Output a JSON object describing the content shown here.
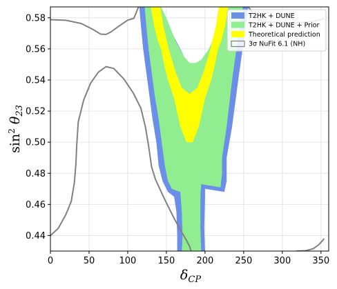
{
  "chart_data": {
    "type": "area",
    "xlabel": "δ_CP",
    "ylabel": "sin² θ23",
    "xlim": [
      0,
      360
    ],
    "ylim": [
      0.43,
      0.587
    ],
    "x_ticks": [
      0,
      50,
      100,
      150,
      200,
      250,
      300,
      350
    ],
    "y_ticks": [
      0.44,
      0.46,
      0.48,
      0.5,
      0.52,
      0.54,
      0.56,
      0.58
    ],
    "grid": true,
    "legend_position": "top-right",
    "colors": {
      "t2hk_dune": "#6b8fe8",
      "prior": "#90ee90",
      "theory": "#ffff00",
      "nufit": "#808080"
    },
    "legend": [
      {
        "key": "t2hk_dune",
        "label": "T2HK + DUNE",
        "style": "fill"
      },
      {
        "key": "prior",
        "label": "T2HK + DUNE + Prior",
        "style": "fill"
      },
      {
        "key": "theory",
        "label": "Theoretical prediction",
        "style": "fill"
      },
      {
        "key": "nufit",
        "label": "3σ NuFit 6.1 (NH)",
        "style": "outline"
      }
    ],
    "series": [
      {
        "key": "t2hk_dune",
        "label": "T2HK + DUNE",
        "kind": "polygon",
        "points": [
          [
            115,
            0.587
          ],
          [
            117,
            0.575
          ],
          [
            120,
            0.56
          ],
          [
            124,
            0.545
          ],
          [
            128,
            0.53
          ],
          [
            132,
            0.515
          ],
          [
            137,
            0.5
          ],
          [
            140,
            0.485
          ],
          [
            145,
            0.475
          ],
          [
            152,
            0.468
          ],
          [
            160,
            0.465
          ],
          [
            163,
            0.455
          ],
          [
            164,
            0.44
          ],
          [
            164,
            0.43
          ],
          [
            200,
            0.43
          ],
          [
            199,
            0.445
          ],
          [
            200,
            0.465
          ],
          [
            200,
            0.47
          ],
          [
            225,
            0.468
          ],
          [
            228,
            0.475
          ],
          [
            228,
            0.49
          ],
          [
            235,
            0.51
          ],
          [
            243,
            0.54
          ],
          [
            250,
            0.565
          ],
          [
            256,
            0.587
          ],
          [
            231,
            0.587
          ],
          [
            226,
            0.575
          ],
          [
            210,
            0.56
          ],
          [
            196,
            0.549
          ],
          [
            190,
            0.547
          ],
          [
            183,
            0.547
          ],
          [
            177,
            0.551
          ],
          [
            168,
            0.56
          ],
          [
            152,
            0.575
          ],
          [
            142,
            0.587
          ]
        ]
      },
      {
        "key": "prior",
        "label": "T2HK + DUNE + Prior",
        "kind": "polygon",
        "points": [
          [
            122,
            0.587
          ],
          [
            124,
            0.575
          ],
          [
            127,
            0.56
          ],
          [
            131,
            0.545
          ],
          [
            135,
            0.53
          ],
          [
            140,
            0.515
          ],
          [
            144,
            0.5
          ],
          [
            148,
            0.485
          ],
          [
            152,
            0.475
          ],
          [
            157,
            0.47
          ],
          [
            168,
            0.468
          ],
          [
            170,
            0.455
          ],
          [
            171,
            0.44
          ],
          [
            170,
            0.43
          ],
          [
            195,
            0.43
          ],
          [
            194,
            0.445
          ],
          [
            194,
            0.465
          ],
          [
            195,
            0.473
          ],
          [
            220,
            0.471
          ],
          [
            222,
            0.48
          ],
          [
            222,
            0.49
          ],
          [
            228,
            0.51
          ],
          [
            235,
            0.54
          ],
          [
            242,
            0.565
          ],
          [
            249,
            0.587
          ],
          [
            226,
            0.587
          ],
          [
            218,
            0.575
          ],
          [
            205,
            0.56
          ],
          [
            195,
            0.553
          ],
          [
            188,
            0.551
          ],
          [
            180,
            0.551
          ],
          [
            173,
            0.555
          ],
          [
            162,
            0.565
          ],
          [
            150,
            0.58
          ],
          [
            143,
            0.587
          ]
        ]
      },
      {
        "key": "theory",
        "label": "Theoretical prediction",
        "kind": "polygon",
        "points": [
          [
            130,
            0.587
          ],
          [
            134,
            0.575
          ],
          [
            139,
            0.565
          ],
          [
            143,
            0.56
          ],
          [
            147,
            0.55
          ],
          [
            152,
            0.54
          ],
          [
            160,
            0.528
          ],
          [
            168,
            0.51
          ],
          [
            176,
            0.5
          ],
          [
            180,
            0.5
          ],
          [
            184,
            0.5
          ],
          [
            192,
            0.51
          ],
          [
            200,
            0.528
          ],
          [
            208,
            0.54
          ],
          [
            213,
            0.55
          ],
          [
            217,
            0.56
          ],
          [
            221,
            0.565
          ],
          [
            226,
            0.575
          ],
          [
            230,
            0.587
          ],
          [
            218,
            0.587
          ],
          [
            214,
            0.575
          ],
          [
            207,
            0.56
          ],
          [
            198,
            0.545
          ],
          [
            190,
            0.535
          ],
          [
            180,
            0.531
          ],
          [
            170,
            0.535
          ],
          [
            162,
            0.545
          ],
          [
            153,
            0.56
          ],
          [
            146,
            0.575
          ],
          [
            142,
            0.587
          ]
        ]
      },
      {
        "key": "theory",
        "label": "Theoretical prediction",
        "kind": "line",
        "points": [
          [
            180,
            0.5
          ],
          [
            180,
            0.518
          ]
        ]
      },
      {
        "key": "nufit",
        "label": "3σ NuFit 6.1 (NH)",
        "kind": "line",
        "points": [
          [
            0,
            0.5788
          ],
          [
            20,
            0.5784
          ],
          [
            40,
            0.5763
          ],
          [
            55,
            0.5725
          ],
          [
            65,
            0.5695
          ],
          [
            72,
            0.5693
          ],
          [
            78,
            0.5708
          ],
          [
            88,
            0.5744
          ],
          [
            100,
            0.5785
          ],
          [
            108,
            0.5797
          ],
          [
            114,
            0.587
          ]
        ]
      },
      {
        "key": "nufit",
        "label": "3σ NuFit 6.1 (NH)",
        "kind": "line",
        "points": [
          [
            0,
            0.44
          ],
          [
            10,
            0.4445
          ],
          [
            20,
            0.4535
          ],
          [
            27,
            0.462
          ],
          [
            31,
            0.474
          ],
          [
            33,
            0.486
          ],
          [
            34,
            0.498
          ],
          [
            36,
            0.513
          ],
          [
            43,
            0.527
          ],
          [
            52,
            0.538
          ],
          [
            62,
            0.545
          ],
          [
            72,
            0.5486
          ],
          [
            82,
            0.5474
          ],
          [
            95,
            0.5407
          ],
          [
            107,
            0.5318
          ],
          [
            117,
            0.5219
          ],
          [
            123,
            0.5095
          ],
          [
            127,
            0.4975
          ],
          [
            131,
            0.484
          ],
          [
            136,
            0.476
          ],
          [
            148,
            0.463
          ],
          [
            160,
            0.451
          ],
          [
            170,
            0.442
          ],
          [
            177,
            0.436
          ],
          [
            180,
            0.433
          ],
          [
            182,
            0.43
          ]
        ]
      },
      {
        "key": "nufit",
        "label": "3σ NuFit 6.1 (NH)",
        "kind": "line",
        "points": [
          [
            256,
            0.587
          ],
          [
            265,
            0.581
          ],
          [
            272,
            0.5783
          ],
          [
            280,
            0.5773
          ],
          [
            290,
            0.577
          ],
          [
            300,
            0.577
          ],
          [
            318,
            0.5768
          ],
          [
            334,
            0.5774
          ],
          [
            348,
            0.5785
          ],
          [
            354,
            0.5795
          ]
        ]
      },
      {
        "key": "nufit",
        "label": "3σ NuFit 6.1 (NH)",
        "kind": "line",
        "points": [
          [
            318,
            0.43
          ],
          [
            330,
            0.4302
          ],
          [
            340,
            0.4315
          ],
          [
            347,
            0.434
          ],
          [
            352,
            0.4367
          ],
          [
            354,
            0.438
          ]
        ]
      }
    ]
  }
}
